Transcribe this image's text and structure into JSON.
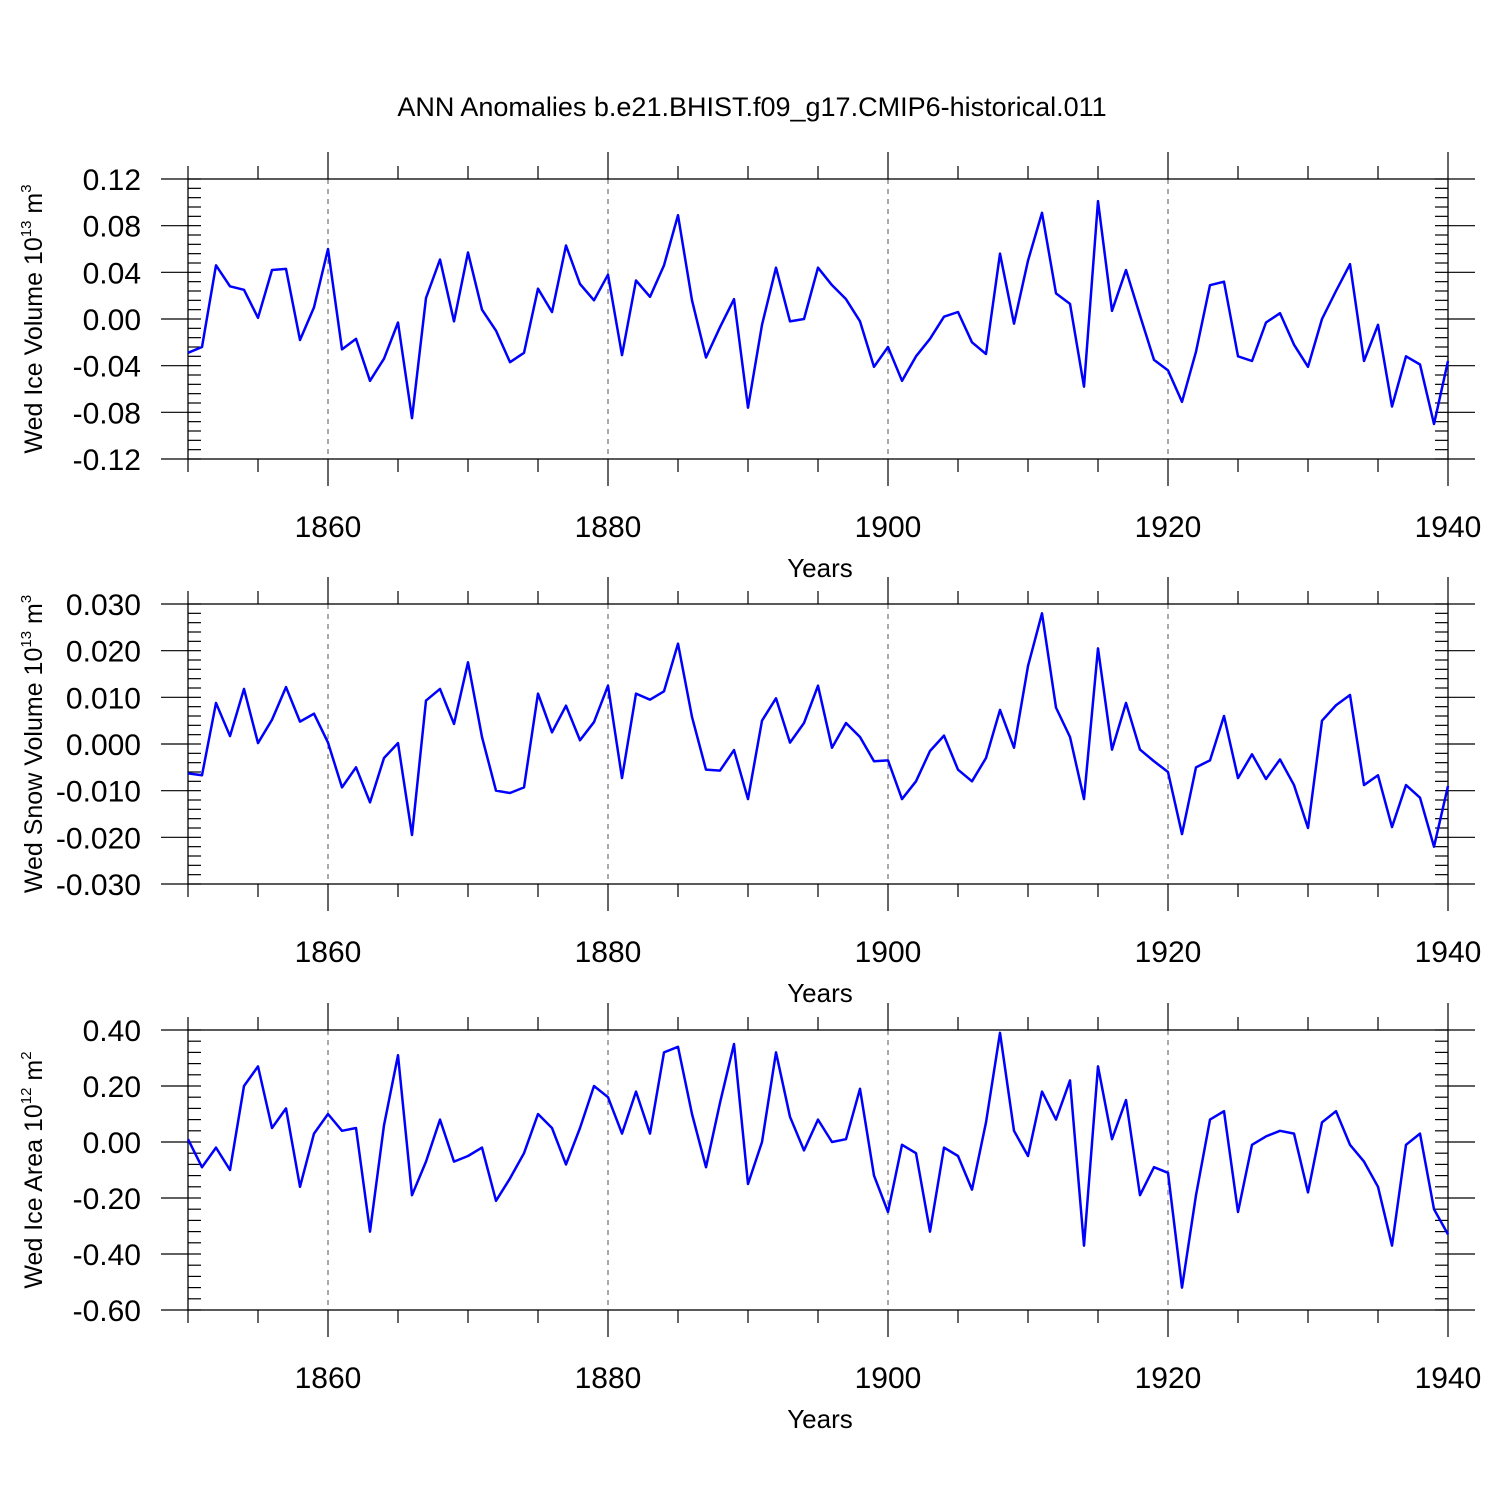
{
  "figure_title": "ANN Anomalies b.e21.BHIST.f09_g17.CMIP6-historical.011",
  "colors": {
    "series": "#0000ff",
    "axes": "#000000",
    "grid": "#555555"
  },
  "chart_data": [
    {
      "type": "line",
      "title": "ANN Anomalies b.e21.BHIST.f09_g17.CMIP6-historical.011",
      "xlabel": "Years",
      "ylabel": {
        "text": "Wed Ice Volume 10",
        "exp": "13",
        "unit": " m",
        "unit_exp": "3"
      },
      "xlim": [
        1850,
        1940
      ],
      "ylim": [
        -0.12,
        0.12
      ],
      "x_ticks": [
        1860,
        1880,
        1900,
        1920,
        1940
      ],
      "x_tick_labels": [
        "1860",
        "1880",
        "1900",
        "1920",
        "1940"
      ],
      "y_ticks": [
        -0.12,
        -0.08,
        -0.04,
        0.0,
        0.04,
        0.08,
        0.12
      ],
      "y_tick_labels": [
        "-0.12",
        "-0.08",
        "-0.04",
        "0.00",
        "0.04",
        "0.08",
        "0.12"
      ],
      "y_minor_step": 0.008,
      "grid": "vertical dashed at major x ticks",
      "x_start": 1850,
      "series": [
        {
          "name": "Wed Ice Volume",
          "color": "#0000ff",
          "values": [
            -0.029,
            -0.024,
            0.046,
            0.028,
            0.025,
            0.001,
            0.042,
            0.043,
            -0.018,
            0.01,
            0.06,
            -0.026,
            -0.017,
            -0.053,
            -0.034,
            -0.003,
            -0.085,
            0.018,
            0.051,
            -0.002,
            0.057,
            0.008,
            -0.01,
            -0.037,
            -0.029,
            0.026,
            0.006,
            0.063,
            0.03,
            0.016,
            0.038,
            -0.031,
            0.033,
            0.019,
            0.046,
            0.089,
            0.016,
            -0.033,
            -0.007,
            0.017,
            -0.076,
            -0.005,
            0.044,
            -0.002,
            0.0,
            0.044,
            0.029,
            0.017,
            -0.002,
            -0.041,
            -0.024,
            -0.053,
            -0.032,
            -0.017,
            0.002,
            0.006,
            -0.02,
            -0.03,
            0.056,
            -0.004,
            0.05,
            0.091,
            0.022,
            0.013,
            -0.058,
            0.101,
            0.007,
            0.042,
            0.003,
            -0.035,
            -0.044,
            -0.071,
            -0.028,
            0.029,
            0.032,
            -0.032,
            -0.036,
            -0.003,
            0.005,
            -0.022,
            -0.041,
            0.0,
            0.024,
            0.047,
            -0.036,
            -0.005,
            -0.075,
            -0.032,
            -0.039,
            -0.09,
            -0.036
          ]
        }
      ]
    },
    {
      "type": "line",
      "xlabel": "Years",
      "ylabel": {
        "text": "Wed Snow Volume 10",
        "exp": "13",
        "unit": " m",
        "unit_exp": "3"
      },
      "xlim": [
        1850,
        1940
      ],
      "ylim": [
        -0.03,
        0.03
      ],
      "x_ticks": [
        1860,
        1880,
        1900,
        1920,
        1940
      ],
      "x_tick_labels": [
        "1860",
        "1880",
        "1900",
        "1920",
        "1940"
      ],
      "y_ticks": [
        -0.03,
        -0.02,
        -0.01,
        0.0,
        0.01,
        0.02,
        0.03
      ],
      "y_tick_labels": [
        "-0.030",
        "-0.020",
        "-0.010",
        "0.000",
        "0.010",
        "0.020",
        "0.030"
      ],
      "y_minor_step": 0.002,
      "grid": "vertical dashed at major x ticks",
      "x_start": 1850,
      "series": [
        {
          "name": "Wed Snow Volume",
          "color": "#0000ff",
          "values": [
            -0.0063,
            -0.0067,
            0.0088,
            0.0017,
            0.0118,
            0.0002,
            0.0052,
            0.0122,
            0.0048,
            0.0065,
            0.0003,
            -0.0093,
            -0.005,
            -0.0125,
            -0.003,
            0.0002,
            -0.0195,
            0.0093,
            0.0118,
            0.0043,
            0.0175,
            0.0015,
            -0.01,
            -0.0105,
            -0.0093,
            0.0108,
            0.0025,
            0.0082,
            0.0008,
            0.0047,
            0.0125,
            -0.0073,
            0.0108,
            0.0095,
            0.0113,
            0.0215,
            0.0058,
            -0.0055,
            -0.0057,
            -0.0013,
            -0.0118,
            0.005,
            0.0098,
            0.0003,
            0.0045,
            0.0125,
            -0.0008,
            0.0045,
            0.0015,
            -0.0037,
            -0.0035,
            -0.0118,
            -0.008,
            -0.0015,
            0.0018,
            -0.0055,
            -0.008,
            -0.003,
            0.0073,
            -0.0008,
            0.0167,
            0.028,
            0.0078,
            0.0015,
            -0.0118,
            0.0205,
            -0.0012,
            0.0088,
            -0.0012,
            -0.0037,
            -0.006,
            -0.0193,
            -0.005,
            -0.0035,
            0.006,
            -0.0073,
            -0.0022,
            -0.0075,
            -0.0033,
            -0.0088,
            -0.018,
            0.005,
            0.0083,
            0.0105,
            -0.0088,
            -0.0067,
            -0.0178,
            -0.0088,
            -0.0115,
            -0.022,
            -0.009
          ]
        }
      ]
    },
    {
      "type": "line",
      "xlabel": "Years",
      "ylabel": {
        "text": "Wed Ice Area 10",
        "exp": "12",
        "unit": " m",
        "unit_exp": "2"
      },
      "xlim": [
        1850,
        1940
      ],
      "ylim": [
        -0.6,
        0.4
      ],
      "x_ticks": [
        1860,
        1880,
        1900,
        1920,
        1940
      ],
      "x_tick_labels": [
        "1860",
        "1880",
        "1900",
        "1920",
        "1940"
      ],
      "y_ticks": [
        -0.6,
        -0.4,
        -0.2,
        0.0,
        0.2,
        0.4
      ],
      "y_tick_labels": [
        "-0.60",
        "-0.40",
        "-0.20",
        "0.00",
        "0.20",
        "0.40"
      ],
      "y_minor_step": 0.04,
      "grid": "vertical dashed at major x ticks",
      "x_start": 1850,
      "series": [
        {
          "name": "Wed Ice Area",
          "color": "#0000ff",
          "values": [
            0.01,
            -0.09,
            -0.02,
            -0.1,
            0.2,
            0.27,
            0.05,
            0.12,
            -0.16,
            0.03,
            0.1,
            0.04,
            0.05,
            -0.32,
            0.06,
            0.31,
            -0.19,
            -0.07,
            0.08,
            -0.07,
            -0.05,
            -0.02,
            -0.21,
            -0.13,
            -0.04,
            0.1,
            0.05,
            -0.08,
            0.05,
            0.2,
            0.16,
            0.03,
            0.18,
            0.03,
            0.32,
            0.34,
            0.1,
            -0.09,
            0.14,
            0.35,
            -0.15,
            0.0,
            0.32,
            0.09,
            -0.03,
            0.08,
            0.0,
            0.01,
            0.19,
            -0.12,
            -0.25,
            -0.01,
            -0.04,
            -0.32,
            -0.02,
            -0.05,
            -0.17,
            0.07,
            0.39,
            0.04,
            -0.05,
            0.18,
            0.08,
            0.22,
            -0.37,
            0.27,
            0.01,
            0.15,
            -0.19,
            -0.09,
            -0.11,
            -0.52,
            -0.19,
            0.08,
            0.11,
            -0.25,
            -0.01,
            0.02,
            0.04,
            0.03,
            -0.18,
            0.07,
            0.11,
            -0.01,
            -0.07,
            -0.16,
            -0.37,
            -0.01,
            0.03,
            -0.24,
            -0.33
          ]
        }
      ]
    }
  ]
}
